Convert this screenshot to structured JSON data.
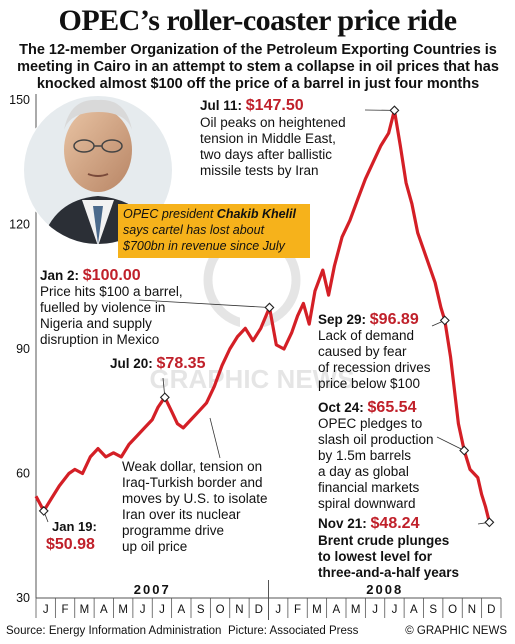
{
  "header": {
    "title": "OPEC’s roller-coaster price ride",
    "subtitle": "The 12-member Organization of the Petroleum Exporting Countries is meeting in Cairo in an attempt to stem a collapse in oil prices that has knocked almost $100 off the price of a barrel in just four months"
  },
  "footer": {
    "source": "Source: Energy Information Administration",
    "picture": "Picture: Associated Press",
    "brand": "© GRAPHIC NEWS"
  },
  "photo_caption": {
    "prefix": "OPEC president ",
    "name": "Chakib Khelil",
    "lines": [
      "says cartel has lost about",
      "$700bn in revenue since July"
    ]
  },
  "colors": {
    "line": "#d41f26",
    "price": "#c0202a",
    "caption_bg": "#f6b21b",
    "axis": "#555555"
  },
  "chart_data": {
    "type": "line",
    "title": "OPEC’s roller-coaster price ride",
    "xlabel": "",
    "ylabel": "",
    "unit": "$ per barrel",
    "ylim": [
      30,
      150
    ],
    "yticks": [
      30,
      60,
      90,
      120,
      150
    ],
    "grid": false,
    "legend": "none",
    "years": [
      "2007",
      "2008"
    ],
    "months": [
      "J",
      "F",
      "M",
      "A",
      "M",
      "J",
      "J",
      "A",
      "S",
      "O",
      "N",
      "D",
      "J",
      "F",
      "M",
      "A",
      "M",
      "J",
      "J",
      "A",
      "S",
      "O",
      "N",
      "D"
    ],
    "series": [
      {
        "values": [
          [
            0.0,
            54.5
          ],
          [
            0.4,
            50.98
          ],
          [
            0.8,
            54
          ],
          [
            1.2,
            57
          ],
          [
            1.7,
            60
          ],
          [
            2.0,
            61
          ],
          [
            2.4,
            60
          ],
          [
            2.8,
            64
          ],
          [
            3.2,
            66
          ],
          [
            3.6,
            64
          ],
          [
            4.0,
            65
          ],
          [
            4.4,
            64
          ],
          [
            4.8,
            67
          ],
          [
            5.2,
            69
          ],
          [
            5.6,
            71
          ],
          [
            6.0,
            73
          ],
          [
            6.3,
            76
          ],
          [
            6.65,
            78.35
          ],
          [
            7.0,
            75
          ],
          [
            7.3,
            72
          ],
          [
            7.6,
            71
          ],
          [
            8.0,
            73
          ],
          [
            8.4,
            75
          ],
          [
            8.8,
            77
          ],
          [
            9.2,
            81
          ],
          [
            9.6,
            86
          ],
          [
            10.0,
            90
          ],
          [
            10.4,
            93
          ],
          [
            10.8,
            95
          ],
          [
            11.2,
            92
          ],
          [
            11.6,
            95
          ],
          [
            12.05,
            100.0
          ],
          [
            12.4,
            91
          ],
          [
            12.8,
            90
          ],
          [
            13.2,
            94
          ],
          [
            13.5,
            98
          ],
          [
            13.8,
            101
          ],
          [
            14.1,
            96
          ],
          [
            14.4,
            104
          ],
          [
            14.8,
            109
          ],
          [
            15.1,
            103
          ],
          [
            15.4,
            110
          ],
          [
            15.8,
            117
          ],
          [
            16.2,
            121
          ],
          [
            16.6,
            126
          ],
          [
            17.0,
            131
          ],
          [
            17.4,
            135
          ],
          [
            17.8,
            139
          ],
          [
            18.2,
            142
          ],
          [
            18.5,
            147.5
          ],
          [
            18.8,
            139
          ],
          [
            19.1,
            130
          ],
          [
            19.4,
            125
          ],
          [
            19.7,
            118
          ],
          [
            20.0,
            114
          ],
          [
            20.3,
            110
          ],
          [
            20.6,
            106
          ],
          [
            20.9,
            100
          ],
          [
            21.1,
            96.89
          ],
          [
            21.4,
            88
          ],
          [
            21.6,
            80
          ],
          [
            21.8,
            72
          ],
          [
            22.1,
            65.54
          ],
          [
            22.4,
            61
          ],
          [
            22.8,
            59
          ],
          [
            23.0,
            55
          ],
          [
            23.2,
            52
          ],
          [
            23.4,
            48.24
          ]
        ]
      }
    ],
    "annotations": [
      {
        "date": "Jan 19:",
        "price": "$50.98",
        "value": 50.98,
        "x": 0.4,
        "text": []
      },
      {
        "date": "Jul 20:",
        "price": "$78.35",
        "value": 78.35,
        "x": 6.65,
        "text": [
          "Weak dollar, tension on",
          "Iraq-Turkish border and",
          "moves by U.S. to isolate",
          "Iran over its nuclear",
          "programme drive",
          "up oil price"
        ]
      },
      {
        "date": "Jan 2:",
        "price": "$100.00",
        "value": 100.0,
        "x": 12.05,
        "text": [
          "Price hits $100 a barrel,",
          "fuelled by violence in",
          "Nigeria and supply",
          "disruption in Mexico"
        ]
      },
      {
        "date": "Jul 11:",
        "price": "$147.50",
        "value": 147.5,
        "x": 18.5,
        "text": [
          "Oil peaks on heightened",
          "tension in Middle East,",
          "two days after ballistic",
          "missile tests by Iran"
        ]
      },
      {
        "date": "Sep 29:",
        "price": "$96.89",
        "value": 96.89,
        "x": 21.1,
        "text": [
          "Lack of demand",
          "caused by fear",
          "of recession drives",
          "price below $100"
        ]
      },
      {
        "date": "Oct 24:",
        "price": "$65.54",
        "value": 65.54,
        "x": 22.1,
        "text": [
          "OPEC pledges to",
          "slash oil production",
          "by 1.5m barrels",
          "a day as global",
          "financial markets",
          "spiral downward"
        ]
      },
      {
        "date": "Nov 21:",
        "price": "$48.24",
        "value": 48.24,
        "x": 23.4,
        "text": [
          "Brent crude plunges",
          "to lowest level for",
          "three-and-a-half years"
        ]
      }
    ]
  }
}
